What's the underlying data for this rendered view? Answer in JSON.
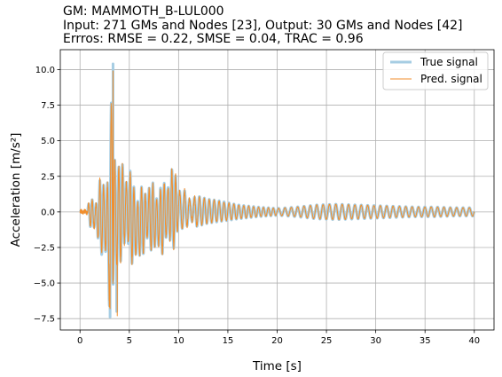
{
  "chart_data": {
    "type": "line",
    "title_lines": [
      "GM: MAMMOTH_B-LUL000",
      "Input: 271 GMs and Nodes [23], Output: 30 GMs and Nodes [42]",
      "Errros: RMSE = 0.22, SMSE = 0.04, TRAC = 0.96"
    ],
    "xlabel": "Time [s]",
    "ylabel": "Acceleration [m/s²]",
    "xlim": [
      -2,
      42
    ],
    "ylim": [
      -8.3,
      11.4
    ],
    "xticks": [
      0,
      5,
      10,
      15,
      20,
      25,
      30,
      35,
      40
    ],
    "yticks": [
      -7.5,
      -5.0,
      -2.5,
      0.0,
      2.5,
      5.0,
      7.5,
      10.0
    ],
    "ytick_labels": [
      "−7.5",
      "−5.0",
      "−2.5",
      "0.0",
      "2.5",
      "5.0",
      "7.5",
      "10.0"
    ],
    "grid": true,
    "legend_position": "top-right",
    "series": [
      {
        "name": "True signal",
        "color": "#a6cde3",
        "style": "thick"
      },
      {
        "name": "Pred. signal",
        "color": "#f28e2b",
        "style": "thin"
      }
    ],
    "envelope": {
      "description": "oscillating signal, upper/lower amplitude envelope by time",
      "t": [
        0,
        0.7,
        1.0,
        1.5,
        2.0,
        2.5,
        3.0,
        3.3,
        3.6,
        3.9,
        4.3,
        5.0,
        5.6,
        6.0,
        7.0,
        8.0,
        9.0,
        9.8,
        10.2,
        11,
        12,
        13,
        14,
        16,
        18,
        20,
        22,
        24,
        26,
        28,
        30,
        32,
        34,
        36,
        38,
        40
      ],
      "upper": [
        0.05,
        0.1,
        1.1,
        0.8,
        2.3,
        2.6,
        4.3,
        10.4,
        4.5,
        4.0,
        3.5,
        3.3,
        2.0,
        1.6,
        2.3,
        1.8,
        2.8,
        3.4,
        1.6,
        1.4,
        1.1,
        0.9,
        0.8,
        0.5,
        0.35,
        0.25,
        0.35,
        0.5,
        0.55,
        0.5,
        0.45,
        0.4,
        0.35,
        0.35,
        0.3,
        0.3
      ],
      "lower": [
        -0.05,
        -0.1,
        -1.0,
        -1.5,
        -2.8,
        -3.5,
        -7.4,
        -6.0,
        -7.0,
        -4.2,
        -3.0,
        -3.2,
        -4.2,
        -3.5,
        -2.7,
        -3.2,
        -2.5,
        -2.8,
        -1.3,
        -1.2,
        -1.0,
        -0.8,
        -0.7,
        -0.5,
        -0.35,
        -0.25,
        -0.35,
        -0.5,
        -0.55,
        -0.5,
        -0.45,
        -0.4,
        -0.35,
        -0.35,
        -0.3,
        -0.3
      ],
      "pred_peak_max": 9.9,
      "pred_peak_min": -7.3
    }
  }
}
